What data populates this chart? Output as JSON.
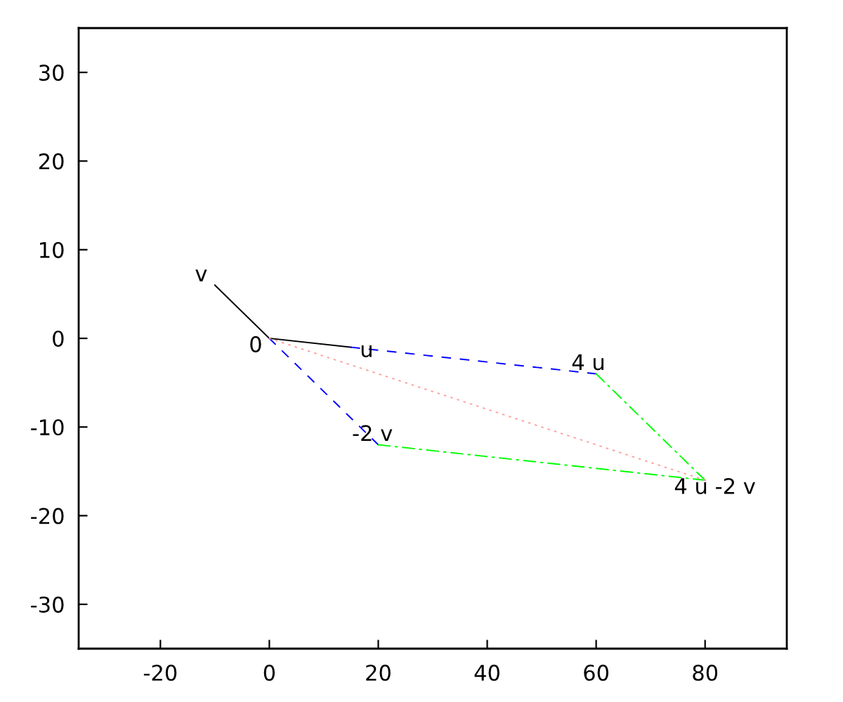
{
  "chart_data": {
    "type": "line",
    "xlim": [
      -35,
      95
    ],
    "ylim": [
      -35,
      35
    ],
    "xticks": [
      -20,
      0,
      20,
      40,
      60,
      80
    ],
    "yticks": [
      -30,
      -20,
      -10,
      0,
      10,
      20,
      30
    ],
    "series": [
      {
        "color": "#000000",
        "line_style": "solid",
        "x": [
          0,
          15
        ],
        "values": [
          0,
          -1
        ]
      },
      {
        "color": "#000000",
        "line_style": "solid",
        "x": [
          0,
          -10
        ],
        "values": [
          0,
          6
        ]
      },
      {
        "color": "#0000ff",
        "line_style": "dashed",
        "x": [
          15,
          60
        ],
        "values": [
          -1,
          -4
        ]
      },
      {
        "color": "#0000ff",
        "line_style": "dashed",
        "x": [
          0,
          20
        ],
        "values": [
          0,
          -12
        ]
      },
      {
        "color": "#00ff00",
        "line_style": "dashdot",
        "x": [
          60,
          80
        ],
        "values": [
          -4,
          -16
        ]
      },
      {
        "color": "#00ff00",
        "line_style": "dashdot",
        "x": [
          20,
          80
        ],
        "values": [
          -12,
          -16
        ]
      },
      {
        "color": "#ffa0a0",
        "line_style": "dotted",
        "x": [
          0,
          80
        ],
        "values": [
          0,
          -16
        ]
      }
    ],
    "annotations": [
      {
        "text": "0",
        "x": 0,
        "y": 0
      },
      {
        "text": "v",
        "x": -10,
        "y": 6
      },
      {
        "text": "u",
        "x": 15,
        "y": -1
      },
      {
        "text": "4 u",
        "x": 60,
        "y": -4
      },
      {
        "text": "-2 v",
        "x": 20,
        "y": -12
      },
      {
        "text": "4 u -2 v",
        "x": 80,
        "y": -16
      }
    ]
  }
}
